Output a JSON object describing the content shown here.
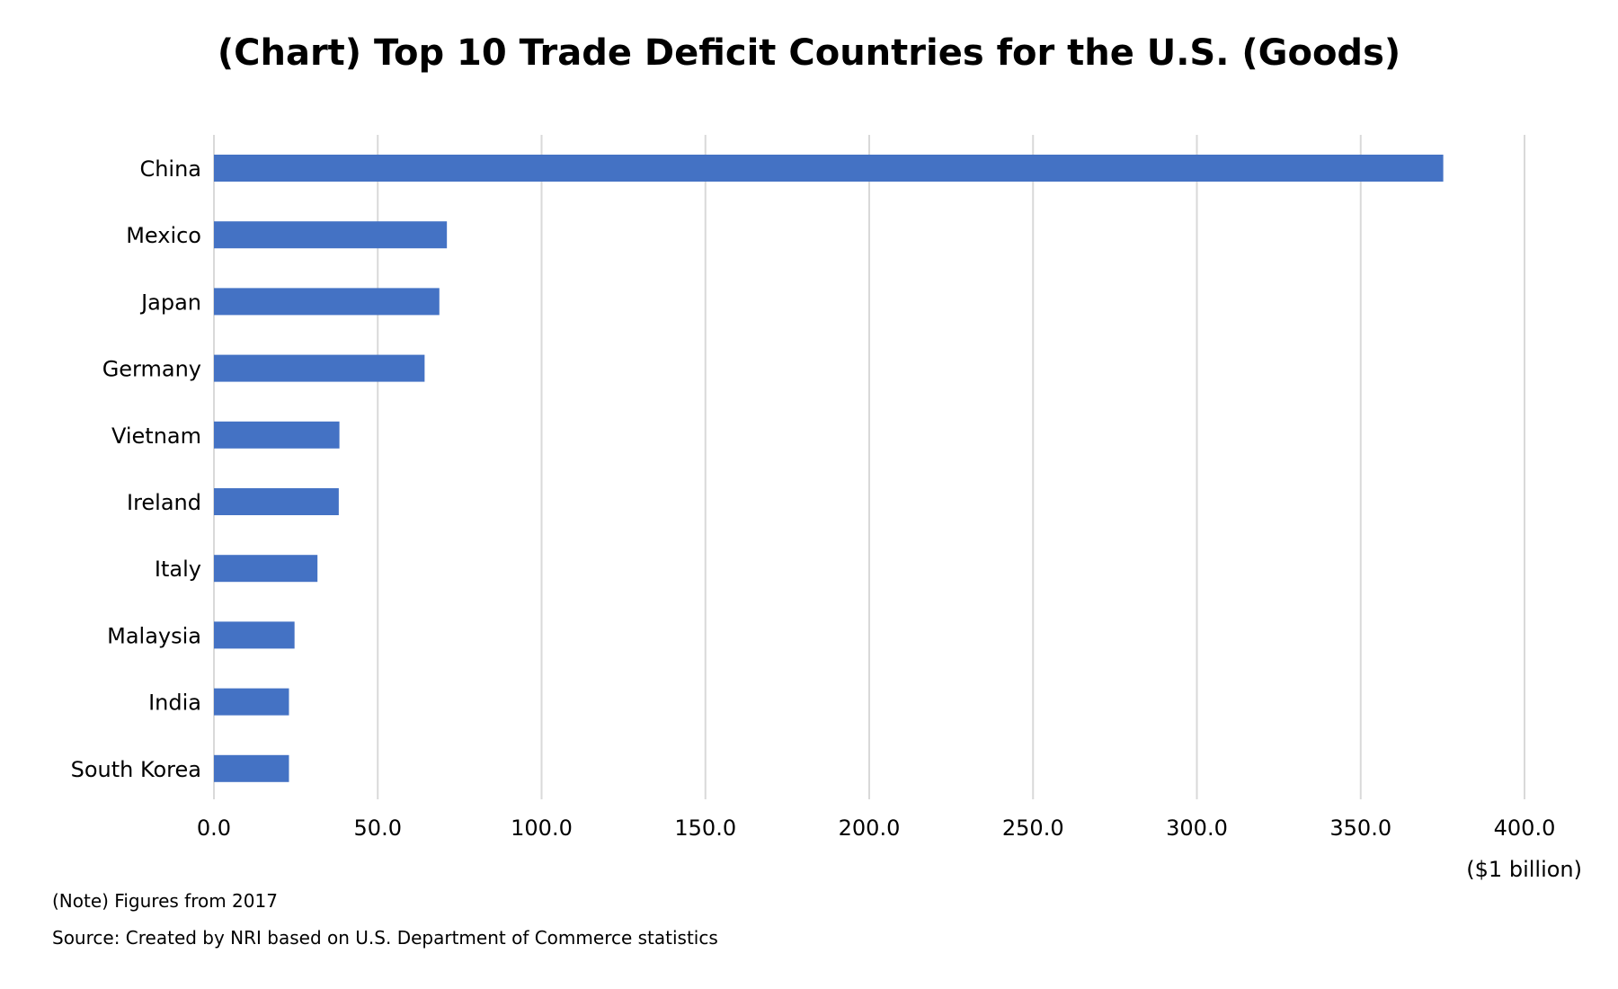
{
  "chart_data": {
    "type": "bar",
    "orientation": "horizontal",
    "title": "(Chart) Top 10 Trade Deficit Countries for the U.S. (Goods)",
    "categories": [
      "China",
      "Mexico",
      "Japan",
      "Germany",
      "Vietnam",
      "Ireland",
      "Italy",
      "Malaysia",
      "India",
      "South Korea"
    ],
    "values": [
      375.2,
      71.1,
      68.8,
      64.3,
      38.3,
      38.1,
      31.6,
      24.6,
      22.9,
      22.9
    ],
    "xlim": [
      0,
      400
    ],
    "xticks": [
      "0.0",
      "50.0",
      "100.0",
      "150.0",
      "200.0",
      "250.0",
      "300.0",
      "350.0",
      "400.0"
    ],
    "unit_label": "($1 billion)",
    "grid": "vertical",
    "bar_color": "#4472C4",
    "legend": "none"
  },
  "notes": {
    "note": "(Note) Figures from 2017",
    "source": "Source: Created by NRI based on U.S. Department of Commerce statistics"
  }
}
